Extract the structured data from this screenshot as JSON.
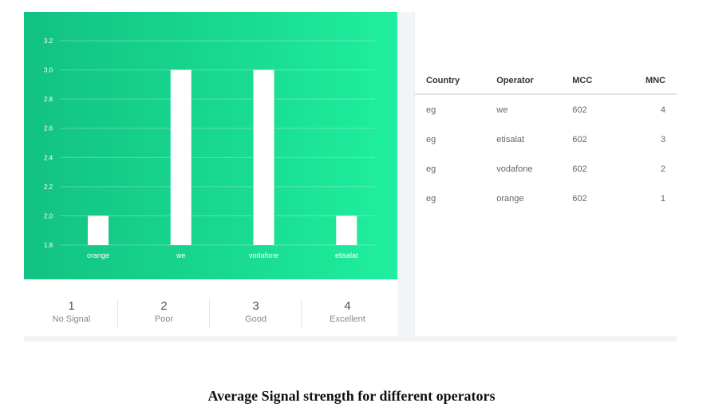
{
  "chart_data": {
    "type": "bar",
    "categories": [
      "orange",
      "we",
      "vodafone",
      "etisalat"
    ],
    "values": [
      2.0,
      3.0,
      3.0,
      2.0
    ],
    "yticks": [
      "1.8",
      "2.0",
      "2.2",
      "2.4",
      "2.6",
      "2.8",
      "3.0",
      "3.2"
    ],
    "ylim": [
      1.8,
      3.2
    ],
    "grid": true,
    "bar_color": "#ffffff",
    "background_colors": [
      "#12c283",
      "#20ef9f"
    ]
  },
  "legend": [
    {
      "num": "1",
      "label": "No Signal"
    },
    {
      "num": "2",
      "label": "Poor"
    },
    {
      "num": "3",
      "label": "Good"
    },
    {
      "num": "4",
      "label": "Excellent"
    }
  ],
  "table": {
    "headers": [
      "Country",
      "Operator",
      "MCC",
      "MNC"
    ],
    "rows": [
      [
        "eg",
        "we",
        "602",
        "4"
      ],
      [
        "eg",
        "etisalat",
        "602",
        "3"
      ],
      [
        "eg",
        "vodafone",
        "602",
        "2"
      ],
      [
        "eg",
        "orange",
        "602",
        "1"
      ]
    ]
  },
  "caption": "Average Signal strength for different operators"
}
